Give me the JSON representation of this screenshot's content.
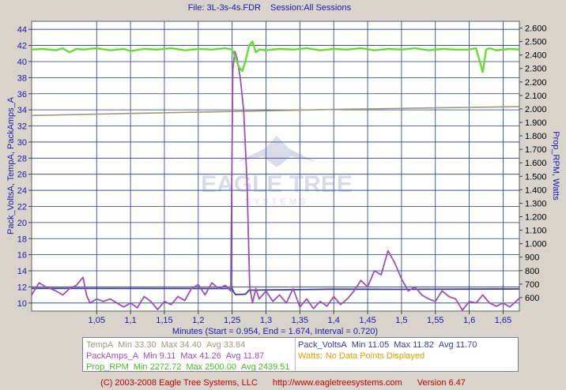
{
  "header": {
    "file_label": "File: 3L-3s-4s.FDR",
    "session_label": "Session:All Sessions"
  },
  "watermark": {
    "brand": "EAGLE TREE",
    "sub": "SYSTEMS"
  },
  "chart_data": {
    "type": "line",
    "xlabel": "Minutes (Start = 0.954,  End = 1.674,  Interval = 0.720)",
    "ylabel_left": "Pack_VoltsA, TempA, PackAmps_A",
    "ylabel_right": "Prop_RPM, Watts",
    "xlim": [
      0.954,
      1.674
    ],
    "ylim_left": [
      9,
      45
    ],
    "ylim_right": [
      500,
      2650
    ],
    "x_ticks": [
      1.05,
      1.1,
      1.15,
      1.2,
      1.25,
      1.3,
      1.35,
      1.4,
      1.45,
      1.5,
      1.55,
      1.6,
      1.65
    ],
    "x_tick_labels": [
      "1,05",
      "1,1",
      "1,15",
      "1,2",
      "1,25",
      "1,3",
      "1,35",
      "1,4",
      "1,45",
      "1,5",
      "1,55",
      "1,6",
      "1,65"
    ],
    "y_left_ticks": [
      10,
      12,
      14,
      16,
      18,
      20,
      22,
      24,
      26,
      28,
      30,
      32,
      34,
      36,
      38,
      40,
      42,
      44
    ],
    "y_right_ticks": [
      600,
      700,
      800,
      900,
      1000,
      1100,
      1200,
      1300,
      1400,
      1500,
      1600,
      1700,
      1800,
      1900,
      2000,
      2100,
      2200,
      2300,
      2400,
      2500,
      2600
    ],
    "y_right_tick_labels": [
      "600",
      "700",
      "800",
      "900",
      "1.000",
      "1.100",
      "1.200",
      "1.300",
      "1.400",
      "1.500",
      "1.600",
      "1.700",
      "1.800",
      "1.900",
      "2.000",
      "2.100",
      "2.200",
      "2.300",
      "2.400",
      "2.500",
      "2.600"
    ],
    "grid": true,
    "series": [
      {
        "name": "TempA",
        "axis": "left",
        "color": "#a09878",
        "x": [
          0.954,
          1.1,
          1.25,
          1.4,
          1.55,
          1.674
        ],
        "y": [
          33.3,
          33.55,
          33.8,
          34.05,
          34.25,
          34.4
        ]
      },
      {
        "name": "Pack_VoltsA",
        "axis": "left",
        "color": "#3a3a9a",
        "x": [
          0.954,
          1.25,
          1.252,
          1.255,
          1.27,
          1.275,
          1.4,
          1.5,
          1.674
        ],
        "y": [
          11.82,
          11.8,
          11.4,
          11.05,
          11.1,
          11.6,
          11.72,
          11.7,
          11.75
        ]
      },
      {
        "name": "PackAmps_A",
        "axis": "left",
        "color": "#9b50b4",
        "x": [
          0.954,
          0.965,
          0.975,
          0.99,
          1.0,
          1.01,
          1.02,
          1.03,
          1.035,
          1.04,
          1.05,
          1.06,
          1.07,
          1.08,
          1.09,
          1.1,
          1.11,
          1.12,
          1.13,
          1.14,
          1.15,
          1.16,
          1.17,
          1.18,
          1.19,
          1.2,
          1.21,
          1.22,
          1.23,
          1.24,
          1.248,
          1.251,
          1.254,
          1.257,
          1.262,
          1.267,
          1.272,
          1.276,
          1.28,
          1.285,
          1.29,
          1.3,
          1.31,
          1.32,
          1.33,
          1.34,
          1.35,
          1.36,
          1.37,
          1.38,
          1.39,
          1.4,
          1.41,
          1.42,
          1.43,
          1.44,
          1.45,
          1.46,
          1.47,
          1.48,
          1.49,
          1.5,
          1.51,
          1.52,
          1.53,
          1.54,
          1.55,
          1.56,
          1.57,
          1.58,
          1.59,
          1.6,
          1.61,
          1.62,
          1.63,
          1.64,
          1.65,
          1.66,
          1.674
        ],
        "y": [
          11.0,
          12.5,
          12.0,
          11.5,
          11.0,
          11.8,
          12.2,
          13.2,
          11.0,
          10.0,
          10.5,
          10.2,
          10.5,
          10.0,
          9.5,
          10.0,
          9.4,
          10.8,
          10.2,
          9.2,
          10.2,
          9.8,
          10.8,
          10.3,
          11.8,
          12.3,
          11.0,
          12.5,
          11.8,
          12.2,
          11.5,
          39.0,
          41.26,
          40.5,
          38.0,
          34.0,
          25.0,
          12.0,
          10.0,
          11.8,
          10.5,
          11.5,
          10.2,
          11.0,
          10.0,
          11.8,
          9.5,
          10.5,
          9.3,
          10.2,
          9.6,
          10.8,
          9.8,
          10.5,
          11.5,
          12.8,
          12.0,
          14.0,
          13.5,
          16.5,
          15.0,
          13.0,
          11.5,
          12.0,
          11.0,
          10.5,
          10.2,
          11.5,
          10.8,
          10.5,
          9.11,
          10.2,
          10.0,
          11.0,
          10.0,
          9.6,
          10.0,
          9.5,
          10.6
        ]
      },
      {
        "name": "Prop_RPM",
        "axis": "right",
        "color": "#66dd33",
        "x": [
          0.954,
          0.97,
          0.99,
          1.0,
          1.01,
          1.02,
          1.03,
          1.05,
          1.07,
          1.09,
          1.1,
          1.12,
          1.14,
          1.16,
          1.18,
          1.2,
          1.22,
          1.24,
          1.25,
          1.255,
          1.26,
          1.265,
          1.27,
          1.275,
          1.28,
          1.285,
          1.29,
          1.3,
          1.32,
          1.34,
          1.36,
          1.38,
          1.4,
          1.42,
          1.44,
          1.46,
          1.48,
          1.5,
          1.52,
          1.54,
          1.56,
          1.58,
          1.6,
          1.61,
          1.62,
          1.625,
          1.63,
          1.64,
          1.66,
          1.674
        ],
        "y": [
          2440,
          2445,
          2435,
          2450,
          2420,
          2445,
          2440,
          2450,
          2435,
          2445,
          2430,
          2445,
          2440,
          2450,
          2435,
          2445,
          2440,
          2450,
          2440,
          2380,
          2310,
          2280,
          2360,
          2470,
          2500,
          2420,
          2440,
          2435,
          2445,
          2440,
          2450,
          2435,
          2445,
          2440,
          2450,
          2435,
          2445,
          2440,
          2450,
          2435,
          2445,
          2440,
          2440,
          2450,
          2272.72,
          2440,
          2450,
          2435,
          2445,
          2440
        ]
      }
    ],
    "legend": {
      "left": [
        {
          "name": "TempA",
          "color": "#a09878",
          "min": "Min 33.30",
          "max": "Max 34.40",
          "avg": "Avg 33.84"
        },
        {
          "name": "PackAmps_A",
          "color": "#9b50b4",
          "min": "Min 9.11",
          "max": "Max 41.26",
          "avg": "Avg 11.87"
        },
        {
          "name": "Prop_RPM",
          "color": "#49b82a",
          "min": "Min 2272.72",
          "max": "Max 2500.00",
          "avg": "Avg 2439.51"
        }
      ],
      "right": [
        {
          "name": "Pack_VoltsA",
          "color": "#3a3a9a",
          "min": "Min 11.05",
          "max": "Max 11.82",
          "avg": "Avg 11.70"
        },
        {
          "name": "Watts",
          "color": "#e0a000",
          "note": "No Data Points Displayed"
        }
      ]
    }
  },
  "footer": {
    "copyright": "(C) 2003-2008 Eagle Tree Systems, LLC",
    "url": "http://www.eagletreesystems.com",
    "version": "Version 6.47"
  }
}
